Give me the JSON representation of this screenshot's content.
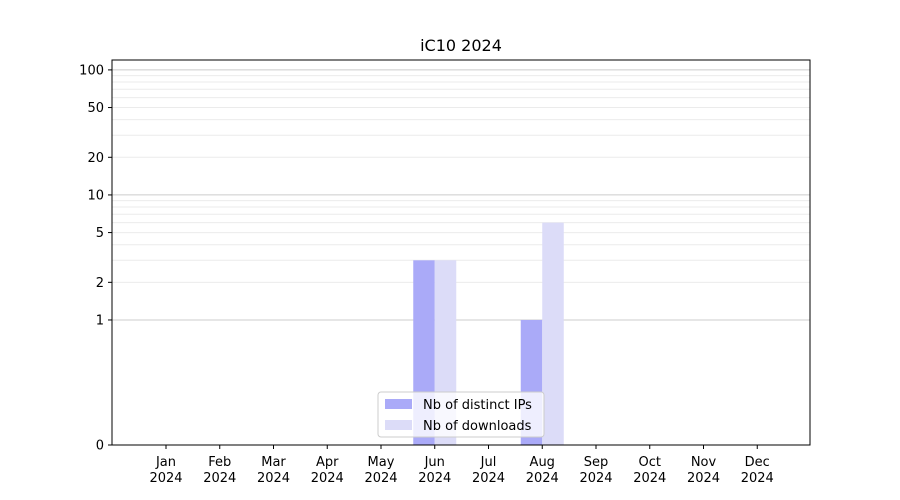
{
  "chart_data": {
    "type": "bar",
    "title": "iC10 2024",
    "xlabel": "",
    "ylabel": "",
    "y_scale": "log",
    "ylim": [
      0,
      120
    ],
    "yticks": [
      {
        "value": 0,
        "label": "0"
      },
      {
        "value": 1,
        "label": "1"
      },
      {
        "value": 2,
        "label": "2"
      },
      {
        "value": 5,
        "label": "5"
      },
      {
        "value": 10,
        "label": "10"
      },
      {
        "value": 20,
        "label": "20"
      },
      {
        "value": 50,
        "label": "50"
      },
      {
        "value": 100,
        "label": "100"
      }
    ],
    "categories": [
      {
        "month": "Jan",
        "year": "2024"
      },
      {
        "month": "Feb",
        "year": "2024"
      },
      {
        "month": "Mar",
        "year": "2024"
      },
      {
        "month": "Apr",
        "year": "2024"
      },
      {
        "month": "May",
        "year": "2024"
      },
      {
        "month": "Jun",
        "year": "2024"
      },
      {
        "month": "Jul",
        "year": "2024"
      },
      {
        "month": "Aug",
        "year": "2024"
      },
      {
        "month": "Sep",
        "year": "2024"
      },
      {
        "month": "Oct",
        "year": "2024"
      },
      {
        "month": "Nov",
        "year": "2024"
      },
      {
        "month": "Dec",
        "year": "2024"
      }
    ],
    "series": [
      {
        "name": "Nb of distinct IPs",
        "color": "#aaaaf8",
        "values": [
          0,
          0,
          0,
          0,
          0,
          3,
          0,
          1,
          0,
          0,
          0,
          0
        ]
      },
      {
        "name": "Nb of downloads",
        "color": "#dcdcf8",
        "values": [
          0,
          0,
          0,
          0,
          0,
          3,
          0,
          6,
          0,
          0,
          0,
          0
        ]
      }
    ],
    "grid": true,
    "legend_position": "bottom-center"
  }
}
